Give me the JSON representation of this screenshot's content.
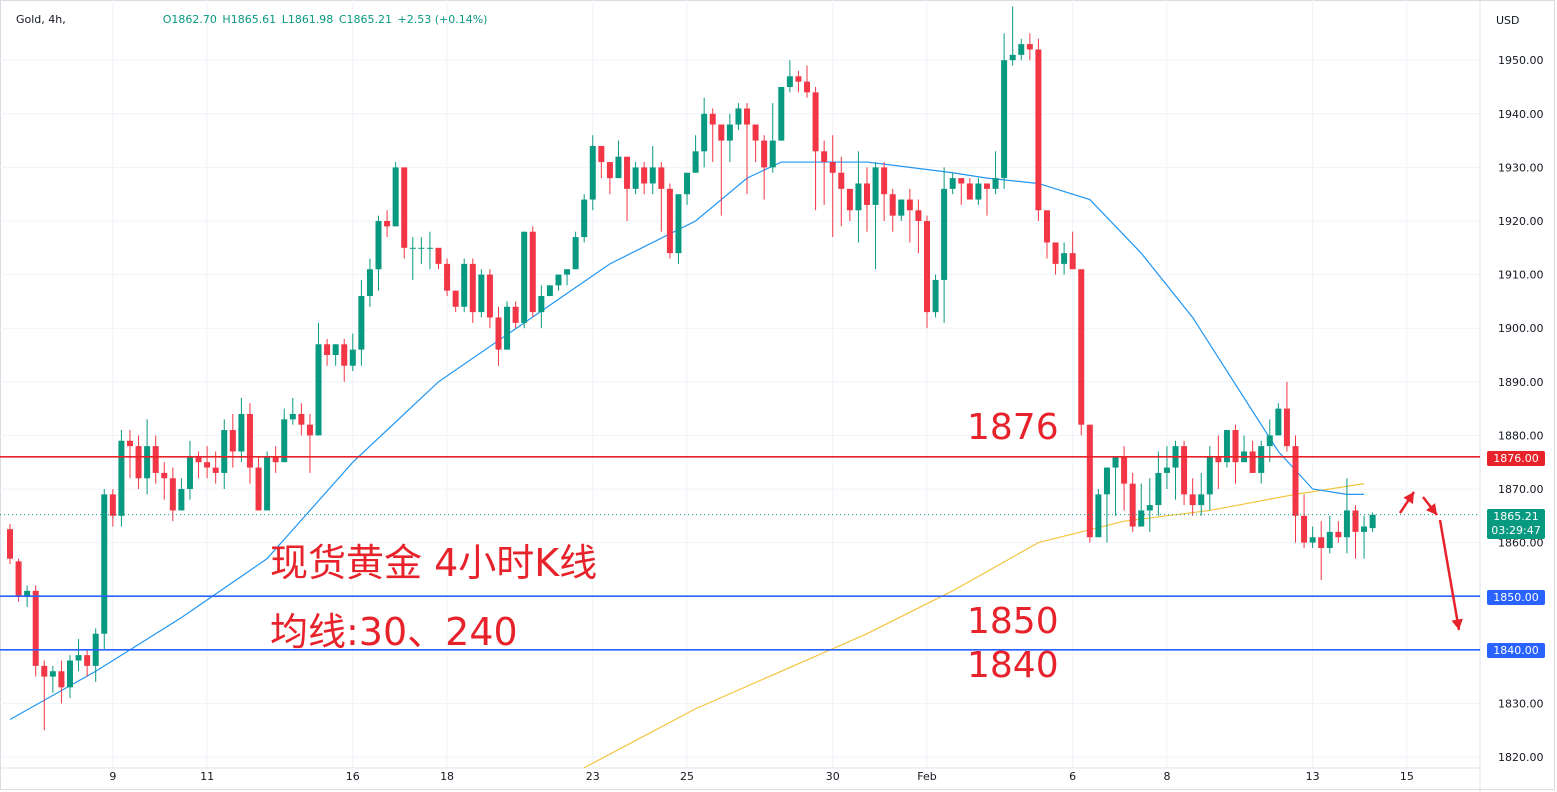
{
  "header": {
    "symbol": "Gold, 4h,",
    "open": "O1862.70",
    "high": "H1865.61",
    "low": "L1861.98",
    "close": "C1865.21",
    "change": "+2.53 (+0.14%)"
  },
  "currency": "USD",
  "annotations": {
    "level_1876": "1876",
    "level_1850": "1850",
    "level_1840": "1840",
    "title_line1": "现货黄金 4小时K线",
    "title_line2": "均线:30、240"
  },
  "price_labels": {
    "resistance": "1876.00",
    "support_1": "1850.00",
    "support_2": "1840.00",
    "current_price": "1865.21",
    "countdown": "03:29:47"
  },
  "colors": {
    "up": "#089981",
    "down": "#f23645",
    "ma30": "#2196f3",
    "ma240": "#f5c542",
    "resistance_line": "#e8222a",
    "support_line": "#2962ff",
    "annotation": "#e8222a"
  },
  "chart_data": {
    "type": "candlestick",
    "symbol": "Gold",
    "timeframe": "4h",
    "currency": "USD",
    "y_axis": {
      "ticks": [
        1820,
        1830,
        1840,
        1850,
        1860,
        1870,
        1880,
        1890,
        1900,
        1910,
        1920,
        1930,
        1940,
        1950
      ],
      "tick_labels": [
        "1820.00",
        "1830.00",
        "1840.00",
        "1850.00",
        "1860.00",
        "1870.00",
        "1880.00",
        "1890.00",
        "1900.00",
        "1910.00",
        "1920.00",
        "1930.00",
        "1940.00",
        "1950.00"
      ],
      "ylim": [
        1817,
        1963
      ]
    },
    "x_axis": {
      "tick_labels": [
        "9",
        "11",
        "16",
        "18",
        "23",
        "25",
        "30",
        "Feb",
        "6",
        "8",
        "13",
        "15"
      ],
      "tick_bar_index": [
        12,
        23,
        40,
        51,
        68,
        79,
        96,
        107,
        124,
        135,
        152,
        163
      ],
      "total_bar_slots": 175
    },
    "candles": [
      [
        1862.5,
        1857,
        1863.5,
        1856
      ],
      [
        1856.5,
        1850,
        1857,
        1849
      ],
      [
        1850,
        1851,
        1852,
        1848
      ],
      [
        1851,
        1837,
        1852,
        1835
      ],
      [
        1837,
        1835,
        1838,
        1825
      ],
      [
        1835,
        1836,
        1837,
        1832
      ],
      [
        1836,
        1833,
        1838,
        1830
      ],
      [
        1833,
        1838,
        1839,
        1831
      ],
      [
        1838,
        1839,
        1842,
        1836
      ],
      [
        1839,
        1837,
        1840,
        1835
      ],
      [
        1837,
        1843,
        1844,
        1834
      ],
      [
        1843,
        1869,
        1870,
        1840
      ],
      [
        1869,
        1865,
        1870,
        1863
      ],
      [
        1865,
        1879,
        1881,
        1863
      ],
      [
        1879,
        1878,
        1881,
        1872
      ],
      [
        1878,
        1872,
        1880,
        1870
      ],
      [
        1872,
        1878,
        1883,
        1869
      ],
      [
        1878,
        1873,
        1880,
        1871
      ],
      [
        1873,
        1872,
        1875,
        1868
      ],
      [
        1872,
        1866,
        1874,
        1864
      ],
      [
        1866,
        1870,
        1872,
        1866
      ],
      [
        1870,
        1876,
        1879,
        1868
      ],
      [
        1876,
        1875,
        1877,
        1872
      ],
      [
        1875,
        1874,
        1878,
        1872
      ],
      [
        1874,
        1873,
        1877,
        1871
      ],
      [
        1873,
        1881,
        1883,
        1870
      ],
      [
        1881,
        1877,
        1884,
        1874
      ],
      [
        1877,
        1884,
        1887,
        1875
      ],
      [
        1884,
        1874,
        1886,
        1871
      ],
      [
        1874,
        1866,
        1876,
        1866
      ],
      [
        1866,
        1876,
        1877,
        1867
      ],
      [
        1876,
        1875,
        1878,
        1873
      ],
      [
        1875,
        1883,
        1885,
        1875
      ],
      [
        1883,
        1884,
        1887,
        1882
      ],
      [
        1884,
        1882,
        1886,
        1880
      ],
      [
        1882,
        1880,
        1884,
        1873
      ],
      [
        1880,
        1897,
        1901,
        1880
      ],
      [
        1897,
        1895,
        1898,
        1893
      ],
      [
        1895,
        1897,
        1897,
        1893
      ],
      [
        1897,
        1893,
        1898,
        1890
      ],
      [
        1893,
        1896,
        1899,
        1892
      ],
      [
        1896,
        1906,
        1909,
        1893
      ],
      [
        1906,
        1911,
        1913,
        1904
      ],
      [
        1911,
        1920,
        1921,
        1907
      ],
      [
        1920,
        1919,
        1922,
        1917
      ],
      [
        1919,
        1930,
        1931,
        1920
      ],
      [
        1930,
        1915,
        1930,
        1913
      ],
      [
        1915,
        1915,
        1917,
        1909
      ],
      [
        1915,
        1915,
        1917,
        1912
      ],
      [
        1915,
        1915,
        1918,
        1911
      ],
      [
        1915,
        1912,
        1914,
        1911
      ],
      [
        1912,
        1907,
        1913,
        1906
      ],
      [
        1907,
        1904,
        1907,
        1903
      ],
      [
        1904,
        1912,
        1913,
        1903
      ],
      [
        1912,
        1903,
        1913,
        1901
      ],
      [
        1903,
        1910,
        1911,
        1902
      ],
      [
        1910,
        1902,
        1911,
        1900
      ],
      [
        1902,
        1896,
        1904,
        1893
      ],
      [
        1896,
        1904,
        1905,
        1902
      ],
      [
        1904,
        1901,
        1905,
        1900
      ],
      [
        1901,
        1918,
        1918,
        1900
      ],
      [
        1918,
        1903,
        1919,
        1902
      ],
      [
        1903,
        1906,
        1908,
        1900
      ],
      [
        1906,
        1908,
        1908,
        1906
      ],
      [
        1908,
        1910,
        1910,
        1907
      ],
      [
        1910,
        1911,
        1911,
        1908
      ],
      [
        1911,
        1917,
        1918,
        1911
      ],
      [
        1917,
        1924,
        1925,
        1916
      ],
      [
        1924,
        1934,
        1936,
        1922
      ],
      [
        1934,
        1931,
        1932,
        1928
      ],
      [
        1931,
        1928,
        1930,
        1925
      ],
      [
        1928,
        1932,
        1935,
        1928
      ],
      [
        1932,
        1926,
        1931,
        1920
      ],
      [
        1926,
        1930,
        1931,
        1925
      ],
      [
        1930,
        1927,
        1931,
        1925
      ],
      [
        1927,
        1930,
        1934,
        1925
      ],
      [
        1930,
        1926,
        1931,
        1918
      ],
      [
        1926,
        1914,
        1927,
        1913
      ],
      [
        1914,
        1925,
        1925,
        1912
      ],
      [
        1925,
        1929,
        1929,
        1923
      ],
      [
        1929,
        1933,
        1936,
        1929
      ],
      [
        1933,
        1940,
        1943,
        1930
      ],
      [
        1940,
        1938,
        1941,
        1931
      ],
      [
        1938,
        1935,
        1938,
        1921
      ],
      [
        1935,
        1938,
        1940,
        1931
      ],
      [
        1938,
        1941,
        1942,
        1937
      ],
      [
        1941,
        1938,
        1942,
        1925
      ],
      [
        1938,
        1935,
        1936,
        1931
      ],
      [
        1935,
        1930,
        1936,
        1924
      ],
      [
        1930,
        1935,
        1942,
        1929
      ],
      [
        1935,
        1945,
        1945,
        1935
      ],
      [
        1945,
        1947,
        1950,
        1944
      ],
      [
        1947,
        1946,
        1948,
        1944
      ],
      [
        1946,
        1944,
        1949,
        1943
      ],
      [
        1944,
        1933,
        1945,
        1922
      ],
      [
        1933,
        1931,
        1935,
        1923
      ],
      [
        1931,
        1929,
        1936,
        1917
      ],
      [
        1929,
        1926,
        1932,
        1919
      ],
      [
        1926,
        1922,
        1925,
        1920
      ],
      [
        1922,
        1927,
        1933,
        1916
      ],
      [
        1927,
        1923,
        1930,
        1918
      ],
      [
        1923,
        1930,
        1931,
        1911
      ],
      [
        1930,
        1925,
        1931,
        1920
      ],
      [
        1925,
        1921,
        1926,
        1918
      ],
      [
        1921,
        1924,
        1924,
        1920
      ],
      [
        1924,
        1922,
        1926,
        1916
      ],
      [
        1922,
        1920,
        1924,
        1914
      ],
      [
        1920,
        1903,
        1921,
        1900
      ],
      [
        1903,
        1909,
        1910,
        1902
      ],
      [
        1909,
        1926,
        1930,
        1901
      ],
      [
        1926,
        1928,
        1929,
        1925
      ],
      [
        1928,
        1927,
        1928,
        1923
      ],
      [
        1927,
        1924,
        1928,
        1925
      ],
      [
        1924,
        1927,
        1928,
        1923
      ],
      [
        1927,
        1926,
        1927,
        1921
      ],
      [
        1926,
        1928,
        1933,
        1925
      ],
      [
        1928,
        1950,
        1955,
        1926
      ],
      [
        1950,
        1951,
        1960,
        1949
      ],
      [
        1951,
        1953,
        1954,
        1950
      ],
      [
        1953,
        1952,
        1955,
        1950
      ],
      [
        1952,
        1922,
        1954,
        1920
      ],
      [
        1922,
        1916,
        1917,
        1913
      ],
      [
        1916,
        1912,
        1914,
        1910
      ],
      [
        1912,
        1914,
        1916,
        1910
      ],
      [
        1914,
        1911,
        1918,
        1911
      ],
      [
        1911,
        1882,
        1910,
        1880
      ],
      [
        1882,
        1861,
        1882,
        1860
      ],
      [
        1861,
        1869,
        1870,
        1862
      ],
      [
        1869,
        1874,
        1874,
        1860
      ],
      [
        1874,
        1876,
        1876,
        1865
      ],
      [
        1876,
        1871,
        1878,
        1866
      ],
      [
        1871,
        1863,
        1873,
        1862
      ],
      [
        1863,
        1866,
        1871,
        1865
      ],
      [
        1866,
        1867,
        1872,
        1862
      ],
      [
        1867,
        1873,
        1877,
        1865
      ],
      [
        1873,
        1874,
        1878,
        1870
      ],
      [
        1874,
        1878,
        1879,
        1868
      ],
      [
        1878,
        1869,
        1879,
        1867
      ],
      [
        1869,
        1867,
        1872,
        1865
      ],
      [
        1867,
        1869,
        1873,
        1865
      ],
      [
        1869,
        1876,
        1878,
        1866
      ],
      [
        1876,
        1875,
        1880,
        1870
      ],
      [
        1875,
        1881,
        1881,
        1874
      ],
      [
        1881,
        1875,
        1882,
        1871
      ],
      [
        1875,
        1877,
        1880,
        1875
      ],
      [
        1877,
        1873,
        1879,
        1873
      ],
      [
        1873,
        1878,
        1879,
        1871
      ],
      [
        1878,
        1880,
        1883,
        1875
      ],
      [
        1880,
        1885,
        1886,
        1880
      ],
      [
        1885,
        1878,
        1890,
        1877
      ],
      [
        1878,
        1865,
        1880,
        1860
      ],
      [
        1865,
        1860,
        1869,
        1859
      ],
      [
        1860,
        1861,
        1863,
        1859
      ],
      [
        1861,
        1859,
        1864,
        1853
      ],
      [
        1859,
        1862,
        1865,
        1858
      ],
      [
        1862,
        1861,
        1864,
        1860
      ],
      [
        1861,
        1866,
        1872,
        1858
      ],
      [
        1866,
        1862,
        1867,
        1857
      ],
      [
        1862,
        1863,
        1865,
        1857
      ],
      [
        1862.7,
        1865.21,
        1865.61,
        1861.98
      ]
    ],
    "ma30": [
      [
        0,
        1827
      ],
      [
        10,
        1836
      ],
      [
        20,
        1846
      ],
      [
        30,
        1857
      ],
      [
        40,
        1875
      ],
      [
        50,
        1890
      ],
      [
        60,
        1901
      ],
      [
        70,
        1912
      ],
      [
        80,
        1920
      ],
      [
        86,
        1928
      ],
      [
        90,
        1931
      ],
      [
        100,
        1931
      ],
      [
        110,
        1929
      ],
      [
        114,
        1928
      ],
      [
        120,
        1927
      ],
      [
        126,
        1924
      ],
      [
        132,
        1914
      ],
      [
        138,
        1902
      ],
      [
        144,
        1887
      ],
      [
        148,
        1877
      ],
      [
        152,
        1870
      ],
      [
        156,
        1869
      ],
      [
        158,
        1869
      ]
    ],
    "ma240": [
      [
        67,
        1818
      ],
      [
        80,
        1829
      ],
      [
        100,
        1843
      ],
      [
        110,
        1851
      ],
      [
        120,
        1860
      ],
      [
        130,
        1864
      ],
      [
        140,
        1866
      ],
      [
        150,
        1869
      ],
      [
        158,
        1871
      ]
    ],
    "horizontal_levels": [
      {
        "price": 1876,
        "label": "1876.00",
        "color": "red"
      },
      {
        "price": 1850,
        "label": "1850.00",
        "color": "blue"
      },
      {
        "price": 1840,
        "label": "1840.00",
        "color": "blue"
      }
    ],
    "current_price": 1865.21
  }
}
